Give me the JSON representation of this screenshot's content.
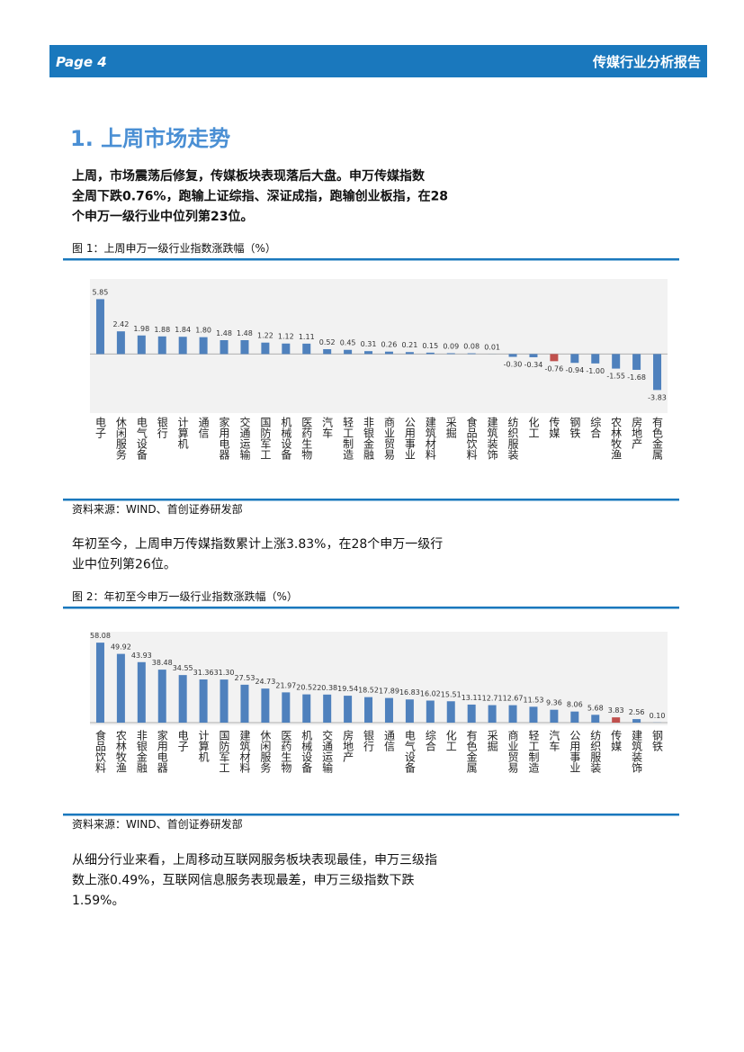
{
  "header": {
    "page": "Page 4",
    "report": "传媒行业分析报告"
  },
  "heading": "1. 上周市场走势",
  "paragraphs": [
    {
      "bold": true,
      "lines": [
        "上周，市场震荡后修复，传媒板块表现落后大盘。申万传媒指数",
        "全周下跌0.76%，跑输上证综指、深证成指，跑输创业板指，在28",
        "个申万一级行业中位列第23位。"
      ]
    },
    {
      "bold": false,
      "lines": [
        "年初至今，上周申万传媒指数累计上涨3.83%，在28个申万一级行",
        "业中位列第26位。"
      ]
    },
    {
      "bold": false,
      "lines": [
        "从细分行业来看，上周移动互联网服务板块表现最佳，申万三级指",
        "数上涨0.49%，互联网信息服务表现最差，申万三级指数下跌",
        "1.59%。"
      ]
    }
  ],
  "chart_data": [
    {
      "type": "bar",
      "title": "图 1：上周申万一级行业指数涨跌幅（%）",
      "source": "资料来源：WIND、首创证券研发部",
      "categories": [
        "电子",
        "休闲服务",
        "电气设备",
        "银行",
        "计算机",
        "通信",
        "家用电器",
        "交通运输",
        "国防军工",
        "机械设备",
        "医药生物",
        "汽车",
        "轻工制造",
        "非银金融",
        "商业贸易",
        "公用事业",
        "建筑材料",
        "采掘",
        "食品饮料",
        "建筑装饰",
        "纺织服装",
        "化工",
        "传媒",
        "钢铁",
        "综合",
        "农林牧渔",
        "房地产",
        "有色金属"
      ],
      "values": [
        5.85,
        2.42,
        1.98,
        1.88,
        1.84,
        1.8,
        1.48,
        1.48,
        1.22,
        1.12,
        1.11,
        0.52,
        0.45,
        0.31,
        0.26,
        0.21,
        0.15,
        0.09,
        0.08,
        0.01,
        -0.3,
        -0.34,
        -0.76,
        -0.94,
        -1,
        -1.55,
        -1.68,
        -3.83
      ],
      "value_labels": [
        "5.85",
        "2.42",
        "1.98",
        "1.88",
        "1.84",
        "1.80",
        "1.48",
        "1.48",
        "1.22",
        "1.12",
        "1.11",
        "0.52",
        "0.45",
        "0.31",
        "0.26",
        "0.21",
        "0.15",
        "0.09",
        "0.08",
        "0.01",
        "-0.30",
        "-0.34",
        "-0.76",
        "-0.94",
        "-1.00",
        "-1.55",
        "-1.68",
        "-3.83"
      ],
      "colors": [
        "#4f81bd",
        "#4f81bd",
        "#4f81bd",
        "#4f81bd",
        "#4f81bd",
        "#4f81bd",
        "#4f81bd",
        "#4f81bd",
        "#4f81bd",
        "#4f81bd",
        "#4f81bd",
        "#4f81bd",
        "#4f81bd",
        "#4f81bd",
        "#4f81bd",
        "#4f81bd",
        "#4f81bd",
        "#4f81bd",
        "#4f81bd",
        "#4f81bd",
        "#4f81bd",
        "#4f81bd",
        "#c0504d",
        "#4f81bd",
        "#4f81bd",
        "#4f81bd",
        "#4f81bd",
        "#4f81bd"
      ],
      "ylim": [
        -6,
        8
      ]
    },
    {
      "type": "bar",
      "title": "图 2：年初至今申万一级行业指数涨跌幅（%）",
      "source": "资料来源：WIND、首创证券研发部",
      "categories": [
        "食品饮料",
        "农林牧渔",
        "非银金融",
        "家用电器",
        "电子",
        "计算机",
        "国防军工",
        "建筑材料",
        "休闲服务",
        "医药生物",
        "机械设备",
        "交通运输",
        "房地产",
        "银行",
        "通信",
        "电气设备",
        "综合",
        "化工",
        "有色金属",
        "采掘",
        "商业贸易",
        "轻工制造",
        "汽车",
        "公用事业",
        "纺织服装",
        "传媒",
        "建筑装饰",
        "钢铁"
      ],
      "values": [
        58.08,
        49.92,
        43.93,
        38.48,
        34.55,
        31.36,
        31.3,
        27.53,
        24.73,
        21.97,
        20.52,
        20.38,
        19.54,
        18.52,
        17.89,
        16.83,
        16.02,
        15.51,
        13.11,
        12.71,
        12.67,
        11.53,
        9.36,
        8.06,
        5.68,
        3.83,
        2.56,
        0.1
      ],
      "value_labels": [
        "58.08",
        "49.92",
        "43.93",
        "38.48",
        "34.55",
        "31.36",
        "31.30",
        "27.53",
        "24.73",
        "21.97",
        "20.52",
        "20.38",
        "19.54",
        "18.52",
        "17.89",
        "16.83",
        "16.02",
        "15.51",
        "13.11",
        "12.71",
        "12.67",
        "11.53",
        "9.36",
        "8.06",
        "5.68",
        "3.83",
        "2.56",
        "0.10"
      ],
      "colors": [
        "#4f81bd",
        "#4f81bd",
        "#4f81bd",
        "#4f81bd",
        "#4f81bd",
        "#4f81bd",
        "#4f81bd",
        "#4f81bd",
        "#4f81bd",
        "#4f81bd",
        "#4f81bd",
        "#4f81bd",
        "#4f81bd",
        "#4f81bd",
        "#4f81bd",
        "#4f81bd",
        "#4f81bd",
        "#4f81bd",
        "#4f81bd",
        "#4f81bd",
        "#4f81bd",
        "#4f81bd",
        "#4f81bd",
        "#4f81bd",
        "#4f81bd",
        "#c0504d",
        "#4f81bd",
        "#4f81bd"
      ],
      "ylim": [
        0,
        66
      ]
    }
  ]
}
